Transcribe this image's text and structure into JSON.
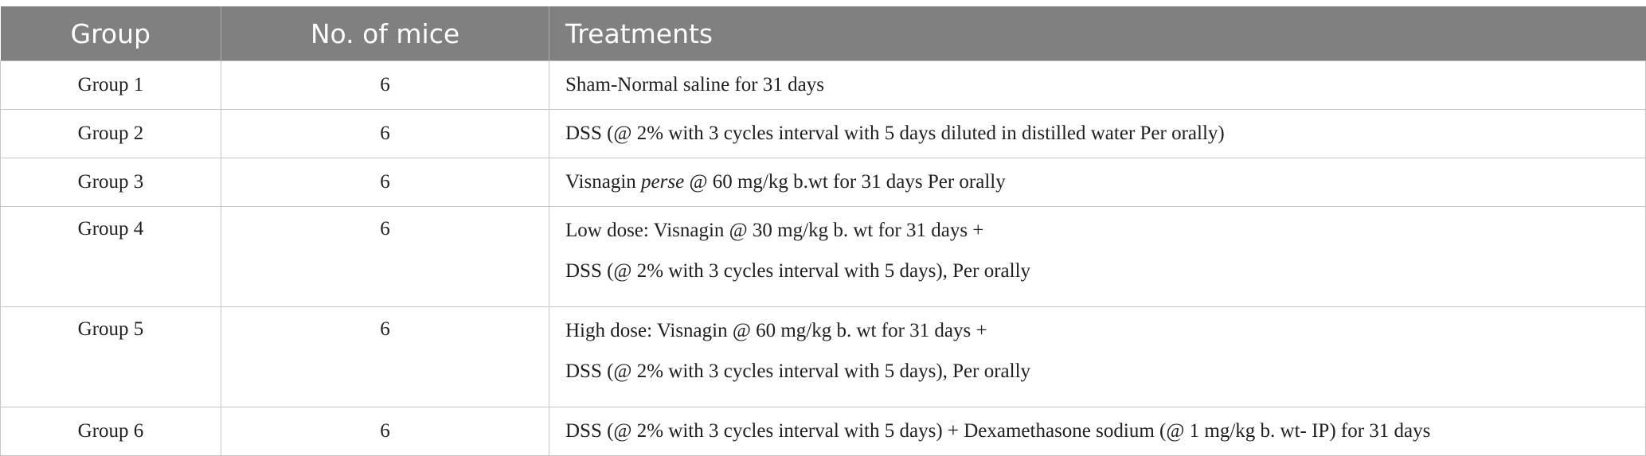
{
  "headers": {
    "group": "Group",
    "mice": "No. of mice",
    "treatments": "Treatments"
  },
  "rows": [
    {
      "group": "Group 1",
      "mice": "6",
      "lines": [
        "Sham-Normal saline for 31 days"
      ]
    },
    {
      "group": "Group 2",
      "mice": "6",
      "lines": [
        "DSS (@ 2% with 3 cycles interval with 5 days diluted in distilled water Per orally)"
      ]
    },
    {
      "group": "Group 3",
      "mice": "6",
      "line_pre": "Visnagin ",
      "line_em": "perse",
      "line_post": " @ 60 mg/kg b.wt for 31 days Per orally"
    },
    {
      "group": "Group 4",
      "mice": "6",
      "lines": [
        "Low dose: Visnagin @ 30 mg/kg b. wt for 31 days +",
        "DSS (@ 2% with 3 cycles interval with 5 days), Per orally"
      ]
    },
    {
      "group": "Group 5",
      "mice": "6",
      "lines": [
        "High dose: Visnagin @ 60 mg/kg b. wt for 31 days +",
        "DSS (@ 2% with 3 cycles interval with 5 days), Per orally"
      ]
    },
    {
      "group": "Group 6",
      "mice": "6",
      "lines": [
        "DSS (@ 2% with 3 cycles interval with 5 days) + Dexamethasone sodium (@ 1 mg/kg b. wt- IP) for 31 days"
      ]
    }
  ],
  "colors": {
    "header_bg": "#808080",
    "header_text": "#ffffff",
    "border": "#c6c6c6",
    "body_text": "#1f1f1f"
  }
}
